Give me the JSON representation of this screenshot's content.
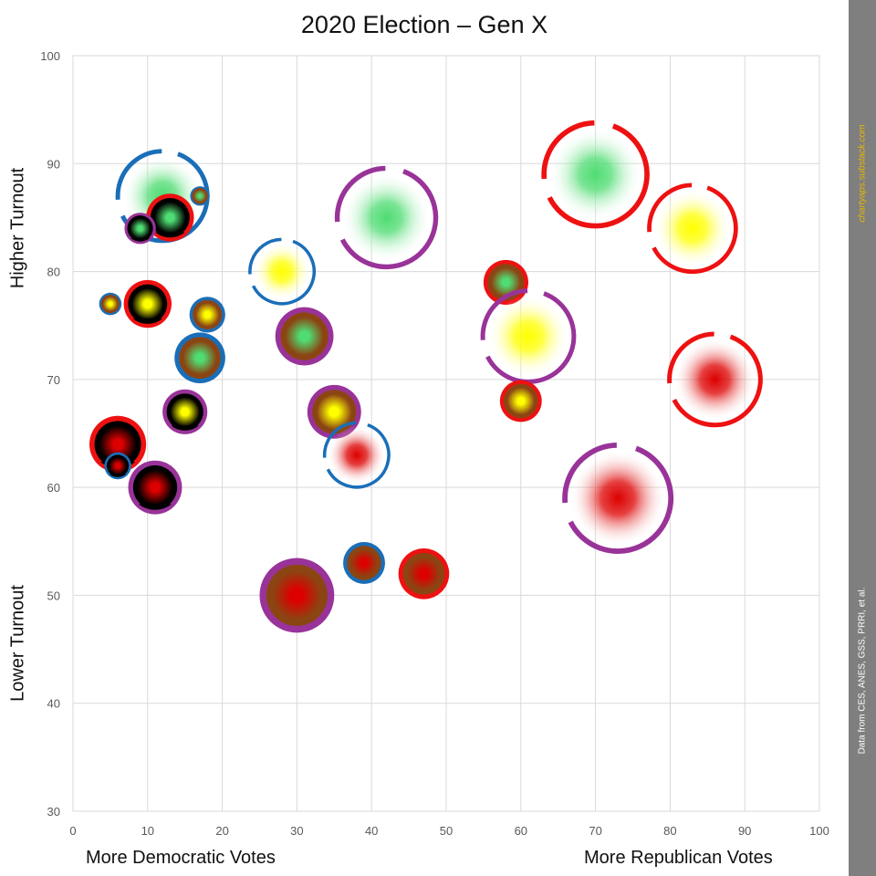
{
  "chart_data": {
    "type": "scatter",
    "title": "2020 Election – Gen X",
    "xlabel_left": "More Democratic Votes",
    "xlabel_right": "More Republican Votes",
    "ylabel_high": "Higher Turnout",
    "ylabel_low": "Lower Turnout",
    "xlim": [
      0,
      100
    ],
    "ylim": [
      30,
      100
    ],
    "x_ticks": [
      "0",
      "10",
      "20",
      "30",
      "40",
      "50",
      "60",
      "70",
      "80",
      "90",
      "100"
    ],
    "y_ticks": [
      "30",
      "40",
      "50",
      "60",
      "70",
      "80",
      "90",
      "100"
    ],
    "grid": true,
    "ring_colors": {
      "blue": "#1a6eb8",
      "red": "#ee1111",
      "purple": "#993399"
    },
    "fill_colors": {
      "green": "#4fdc72",
      "yellow": "#ffff00",
      "red": "#dd0000",
      "black": "#000000",
      "brown": "#8b4513",
      "white": "#ffffff"
    },
    "points": [
      {
        "x": 12,
        "y": 87,
        "size": 6.0,
        "ring": "blue",
        "ring_style": "broken",
        "core": "green",
        "base": "white"
      },
      {
        "x": 17,
        "y": 87,
        "size": 1.3,
        "ring": "blue",
        "ring_style": "solid",
        "core": "green",
        "base": "brown"
      },
      {
        "x": 13,
        "y": 85,
        "size": 3.2,
        "ring": "red",
        "ring_style": "solid",
        "core": "green",
        "base": "black"
      },
      {
        "x": 9,
        "y": 84,
        "size": 2.1,
        "ring": "purple",
        "ring_style": "solid",
        "core": "green",
        "base": "black"
      },
      {
        "x": 5,
        "y": 77,
        "size": 1.5,
        "ring": "blue",
        "ring_style": "solid",
        "core": "yellow",
        "base": "brown"
      },
      {
        "x": 10,
        "y": 77,
        "size": 3.2,
        "ring": "red",
        "ring_style": "solid",
        "core": "yellow",
        "base": "black"
      },
      {
        "x": 18,
        "y": 76,
        "size": 2.4,
        "ring": "blue",
        "ring_style": "solid",
        "core": "yellow",
        "base": "brown"
      },
      {
        "x": 17,
        "y": 72,
        "size": 3.4,
        "ring": "blue",
        "ring_style": "solid",
        "core": "green",
        "base": "brown"
      },
      {
        "x": 15,
        "y": 67,
        "size": 3.0,
        "ring": "purple",
        "ring_style": "solid",
        "core": "yellow",
        "base": "black"
      },
      {
        "x": 6,
        "y": 64,
        "size": 3.8,
        "ring": "red",
        "ring_style": "solid",
        "core": "red",
        "base": "black"
      },
      {
        "x": 6,
        "y": 62,
        "size": 1.8,
        "ring": "blue",
        "ring_style": "solid",
        "core": "red",
        "base": "black"
      },
      {
        "x": 11,
        "y": 60,
        "size": 3.6,
        "ring": "purple",
        "ring_style": "solid",
        "core": "red",
        "base": "black"
      },
      {
        "x": 28,
        "y": 80,
        "size": 4.3,
        "ring": "blue",
        "ring_style": "broken",
        "core": "yellow",
        "base": "white"
      },
      {
        "x": 31,
        "y": 74,
        "size": 3.9,
        "ring": "purple",
        "ring_style": "solid",
        "core": "green",
        "base": "brown"
      },
      {
        "x": 35,
        "y": 67,
        "size": 3.6,
        "ring": "purple",
        "ring_style": "solid",
        "core": "yellow",
        "base": "brown"
      },
      {
        "x": 38,
        "y": 63,
        "size": 4.3,
        "ring": "blue",
        "ring_style": "broken",
        "core": "red",
        "base": "white"
      },
      {
        "x": 42,
        "y": 85,
        "size": 6.6,
        "ring": "purple",
        "ring_style": "broken",
        "core": "green",
        "base": "white"
      },
      {
        "x": 30,
        "y": 50,
        "size": 5.0,
        "ring": "purple",
        "ring_style": "solid",
        "core": "red",
        "base": "brown"
      },
      {
        "x": 39,
        "y": 53,
        "size": 2.8,
        "ring": "blue",
        "ring_style": "solid",
        "core": "red",
        "base": "brown"
      },
      {
        "x": 47,
        "y": 52,
        "size": 3.4,
        "ring": "red",
        "ring_style": "solid",
        "core": "red",
        "base": "brown"
      },
      {
        "x": 58,
        "y": 79,
        "size": 3.0,
        "ring": "red",
        "ring_style": "solid",
        "core": "green",
        "base": "brown"
      },
      {
        "x": 61,
        "y": 74,
        "size": 6.1,
        "ring": "purple",
        "ring_style": "broken",
        "core": "yellow",
        "base": "white"
      },
      {
        "x": 60,
        "y": 68,
        "size": 2.8,
        "ring": "red",
        "ring_style": "solid",
        "core": "yellow",
        "base": "brown"
      },
      {
        "x": 70,
        "y": 89,
        "size": 6.9,
        "ring": "red",
        "ring_style": "broken",
        "core": "green",
        "base": "white"
      },
      {
        "x": 83,
        "y": 84,
        "size": 5.8,
        "ring": "red",
        "ring_style": "broken",
        "core": "yellow",
        "base": "white"
      },
      {
        "x": 86,
        "y": 70,
        "size": 6.1,
        "ring": "red",
        "ring_style": "broken",
        "core": "red",
        "base": "white"
      },
      {
        "x": 73,
        "y": 59,
        "size": 7.1,
        "ring": "purple",
        "ring_style": "broken",
        "core": "red",
        "base": "white"
      }
    ]
  },
  "side_panel": {
    "credit": "chartyaps.substack.com",
    "source": "Data from CES, ANES, GSS, PRRI, et al."
  }
}
